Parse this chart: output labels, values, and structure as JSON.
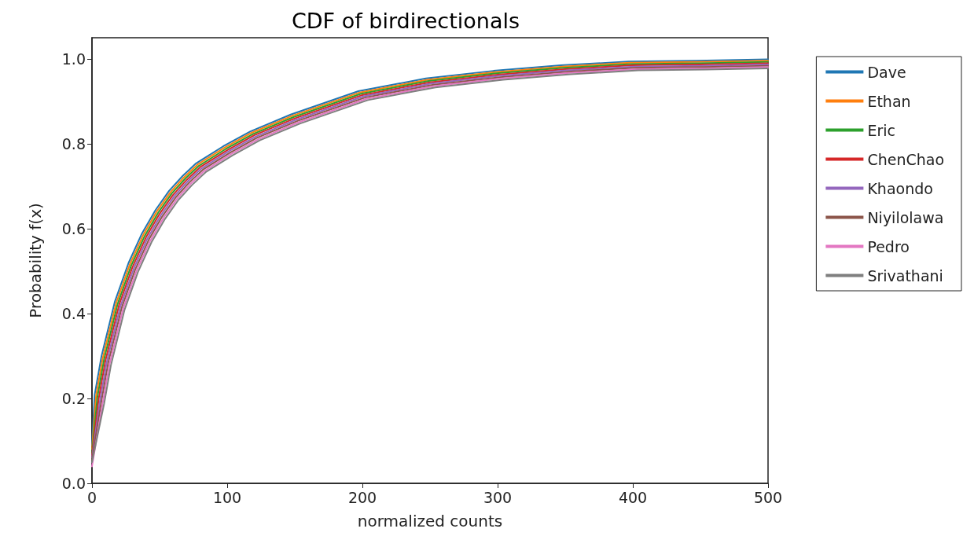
{
  "chart_data": {
    "type": "line",
    "title": "CDF of birdirectionals",
    "xlabel": "normalized counts",
    "ylabel": "Probability f(x)",
    "series": [
      {
        "name": "Dave",
        "color": "#1f77b4",
        "x": [
          0,
          2,
          7,
          17,
          27,
          37,
          47,
          57,
          67,
          77,
          97,
          117,
          147,
          197,
          247,
          297,
          347,
          397,
          447,
          500
        ],
        "values": [
          0.09,
          0.209,
          0.299,
          0.429,
          0.519,
          0.589,
          0.644,
          0.689,
          0.724,
          0.754,
          0.794,
          0.829,
          0.869,
          0.924,
          0.954,
          0.972,
          0.985,
          0.994,
          0.996,
          0.999
        ]
      },
      {
        "name": "Ethan",
        "color": "#ff7f0e",
        "x": [
          0,
          3,
          8,
          18,
          28,
          38,
          48,
          58,
          68,
          78,
          98,
          118,
          148,
          198,
          248,
          298,
          348,
          398,
          448,
          500
        ],
        "values": [
          0.08,
          0.206,
          0.296,
          0.426,
          0.516,
          0.586,
          0.641,
          0.686,
          0.721,
          0.751,
          0.791,
          0.826,
          0.866,
          0.921,
          0.951,
          0.969,
          0.982,
          0.991,
          0.993,
          0.996
        ]
      },
      {
        "name": "Eric",
        "color": "#2ca02c",
        "x": [
          0,
          4,
          9,
          19,
          29,
          39,
          49,
          59,
          69,
          79,
          99,
          119,
          149,
          199,
          249,
          299,
          349,
          399,
          449,
          500
        ],
        "values": [
          0.07,
          0.203,
          0.293,
          0.423,
          0.513,
          0.583,
          0.638,
          0.683,
          0.718,
          0.748,
          0.788,
          0.823,
          0.863,
          0.918,
          0.948,
          0.966,
          0.979,
          0.988,
          0.99,
          0.993
        ]
      },
      {
        "name": "ChenChao",
        "color": "#d62728",
        "x": [
          0,
          5,
          10,
          20,
          30,
          40,
          50,
          60,
          70,
          80,
          100,
          120,
          150,
          200,
          250,
          300,
          350,
          400,
          450,
          500
        ],
        "values": [
          0.065,
          0.2,
          0.29,
          0.42,
          0.51,
          0.58,
          0.635,
          0.68,
          0.715,
          0.745,
          0.785,
          0.82,
          0.86,
          0.915,
          0.945,
          0.963,
          0.976,
          0.985,
          0.987,
          0.99
        ]
      },
      {
        "name": "Khaondo",
        "color": "#9467bd",
        "x": [
          0,
          6,
          11,
          21,
          31,
          41,
          51,
          61,
          71,
          81,
          101,
          121,
          151,
          201,
          251,
          301,
          351,
          401,
          451,
          500
        ],
        "values": [
          0.06,
          0.197,
          0.287,
          0.417,
          0.507,
          0.577,
          0.632,
          0.677,
          0.712,
          0.742,
          0.782,
          0.817,
          0.857,
          0.912,
          0.942,
          0.96,
          0.973,
          0.982,
          0.984,
          0.987
        ]
      },
      {
        "name": "Niyilolawa",
        "color": "#8c564b",
        "x": [
          0,
          7,
          12,
          22,
          32,
          42,
          52,
          62,
          72,
          82,
          102,
          122,
          152,
          202,
          252,
          302,
          352,
          402,
          452,
          500
        ],
        "values": [
          0.055,
          0.194,
          0.284,
          0.414,
          0.504,
          0.574,
          0.629,
          0.674,
          0.709,
          0.739,
          0.779,
          0.814,
          0.854,
          0.909,
          0.939,
          0.957,
          0.97,
          0.979,
          0.981,
          0.984
        ]
      },
      {
        "name": "Pedro",
        "color": "#e377c2",
        "x": [
          0,
          8,
          13,
          23,
          33,
          43,
          53,
          63,
          73,
          83,
          103,
          123,
          153,
          203,
          253,
          303,
          353,
          403,
          453,
          500
        ],
        "values": [
          0.04,
          0.191,
          0.281,
          0.411,
          0.501,
          0.571,
          0.626,
          0.671,
          0.706,
          0.736,
          0.776,
          0.811,
          0.851,
          0.906,
          0.936,
          0.954,
          0.967,
          0.976,
          0.978,
          0.981
        ]
      },
      {
        "name": "Srivathani",
        "color": "#7f7f7f",
        "x": [
          0,
          9,
          14,
          24,
          34,
          44,
          54,
          64,
          74,
          84,
          104,
          124,
          154,
          204,
          254,
          304,
          354,
          404,
          454,
          500
        ],
        "values": [
          0.05,
          0.188,
          0.278,
          0.408,
          0.498,
          0.568,
          0.623,
          0.668,
          0.703,
          0.733,
          0.773,
          0.808,
          0.848,
          0.903,
          0.933,
          0.951,
          0.964,
          0.973,
          0.975,
          0.978
        ]
      }
    ],
    "xlim": [
      0,
      500
    ],
    "xticks": [
      0,
      100,
      200,
      300,
      400,
      500
    ],
    "ylim": [
      0,
      1.05
    ],
    "yticks": [
      {
        "value": 0,
        "label": "0.0"
      },
      {
        "value": 0.2,
        "label": "0.2"
      },
      {
        "value": 0.4,
        "label": "0.4"
      },
      {
        "value": 0.6,
        "label": "0.6"
      },
      {
        "value": 0.8,
        "label": "0.8"
      },
      {
        "value": 1,
        "label": "1.0"
      }
    ],
    "grid": false,
    "legend": "right",
    "marker": "none",
    "line_style": "solid"
  }
}
